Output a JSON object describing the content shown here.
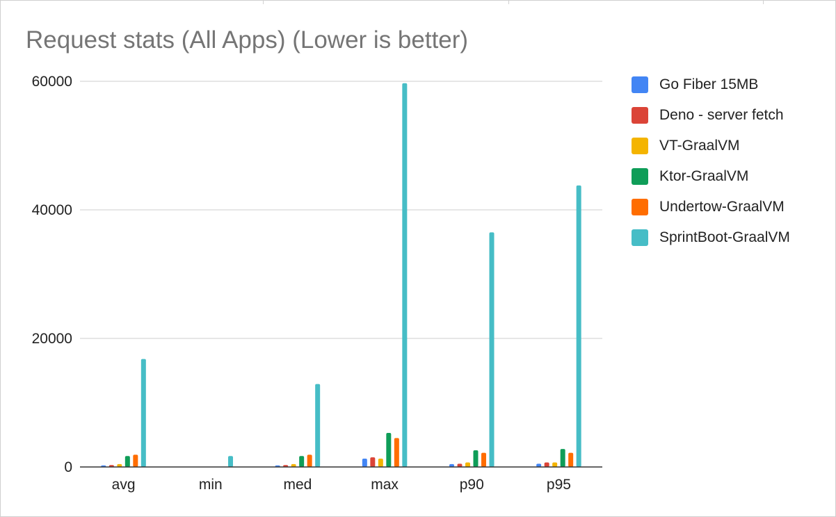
{
  "chart_data": {
    "type": "bar",
    "title": "Request stats (All Apps) (Lower is better)",
    "xlabel": "",
    "ylabel": "",
    "categories": [
      "avg",
      "min",
      "med",
      "max",
      "p90",
      "p95"
    ],
    "ylim": [
      0,
      60000
    ],
    "yticks": [
      "0",
      "20000",
      "40000",
      "60000"
    ],
    "grid": true,
    "legend_position": "right",
    "series": [
      {
        "name": "Go Fiber 15MB",
        "color": "#4285f4",
        "values": [
          250,
          10,
          250,
          1300,
          450,
          500
        ]
      },
      {
        "name": "Deno - server fetch",
        "color": "#db4437",
        "values": [
          300,
          10,
          300,
          1500,
          500,
          700
        ]
      },
      {
        "name": "VT-GraalVM",
        "color": "#f4b400",
        "values": [
          450,
          10,
          450,
          1300,
          700,
          700
        ]
      },
      {
        "name": "Ktor-GraalVM",
        "color": "#0f9d58",
        "values": [
          1700,
          10,
          1700,
          5300,
          2600,
          2800
        ]
      },
      {
        "name": "Undertow-GraalVM",
        "color": "#ff6d00",
        "values": [
          1900,
          10,
          1900,
          4500,
          2200,
          2200
        ]
      },
      {
        "name": "SprintBoot-GraalVM",
        "color": "#46bdc6",
        "values": [
          16800,
          1700,
          12900,
          59700,
          36500,
          43800
        ]
      }
    ]
  }
}
